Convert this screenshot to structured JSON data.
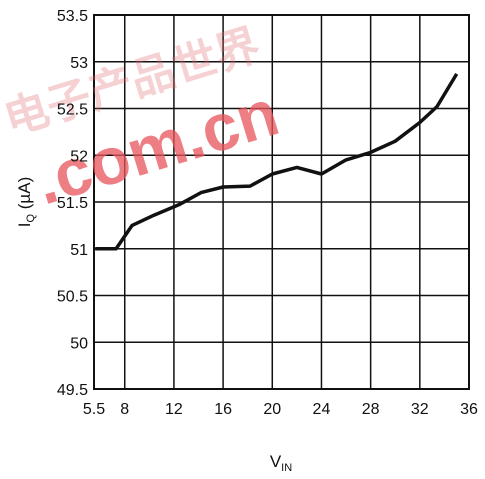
{
  "chart_data": {
    "type": "line",
    "xlabel": "V",
    "xlabel_sub": "IN",
    "ylabel": "I",
    "ylabel_sub": "Q",
    "ylabel_unit": " (µA)",
    "xlim": [
      5.5,
      36
    ],
    "ylim": [
      49.5,
      53.5
    ],
    "x_ticks": [
      5.5,
      8,
      12,
      16,
      20,
      24,
      28,
      32,
      36
    ],
    "x_tick_labels": [
      "5.5",
      "8",
      "12",
      "16",
      "20",
      "24",
      "28",
      "32",
      "36"
    ],
    "y_ticks": [
      49.5,
      50,
      50.5,
      51,
      51.5,
      52,
      52.5,
      53,
      53.5
    ],
    "y_tick_labels": [
      "49.5",
      "50",
      "50.5",
      "51",
      "51.5",
      "52",
      "52.5",
      "53",
      "53.5"
    ],
    "grid": true,
    "series": [
      {
        "x": [
          5.6,
          7.3,
          8.6,
          10.4,
          12.4,
          14.2,
          16.0,
          18.2,
          20.0,
          22.0,
          24.0,
          26.0,
          28.0,
          30.0,
          32.0,
          33.4,
          35.0
        ],
        "y": [
          51.0,
          51.0,
          51.25,
          51.36,
          51.47,
          51.6,
          51.66,
          51.67,
          51.8,
          51.87,
          51.8,
          51.95,
          52.03,
          52.15,
          52.35,
          52.52,
          52.87
        ]
      }
    ],
    "color": "#111111"
  },
  "watermark": {
    "text": ".com.cn",
    "cjk": "电子产品世界"
  }
}
